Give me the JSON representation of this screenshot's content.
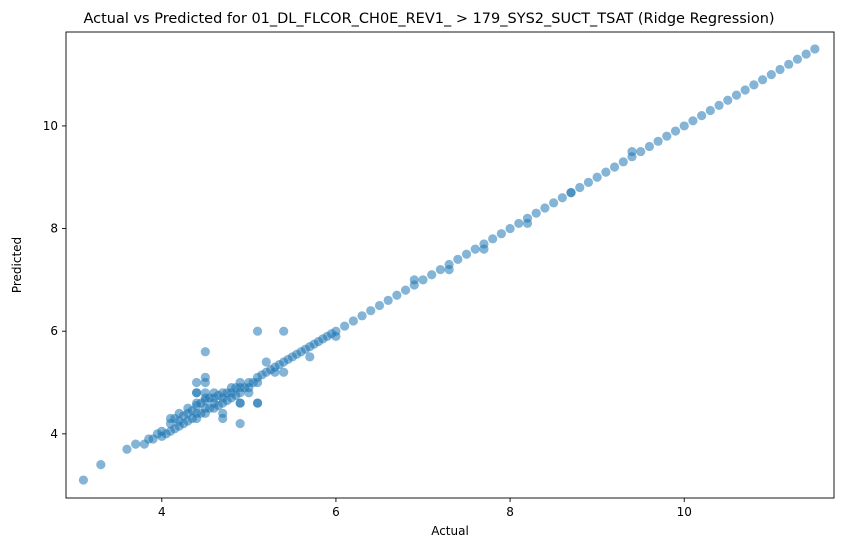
{
  "chart_data": {
    "type": "scatter",
    "title": "Actual vs Predicted for 01_DL_FLCOR_CH0E_REV1_ > 179_SYS2_SUCT_TSAT (Ridge Regression)",
    "xlabel": "Actual",
    "ylabel": "Predicted",
    "xlim": [
      2.9,
      11.72
    ],
    "ylim": [
      2.75,
      11.83
    ],
    "xticks": [
      4,
      6,
      8,
      10
    ],
    "yticks": [
      4,
      6,
      8,
      10
    ],
    "grid": false,
    "legend": "none",
    "colors": {
      "points": "#1f77b4",
      "axes": "#000000"
    },
    "point_alpha": 0.55,
    "series": [
      {
        "x": [
          3.1,
          3.3,
          3.6,
          3.7,
          3.8,
          3.85,
          3.9,
          3.95,
          4.0,
          4.0,
          4.05,
          4.1,
          4.1,
          4.1,
          4.15,
          4.15,
          4.2,
          4.2,
          4.2,
          4.25,
          4.25,
          4.3,
          4.3,
          4.3,
          4.35,
          4.35,
          4.4,
          4.4,
          4.4,
          4.4,
          4.4,
          4.45,
          4.45,
          4.5,
          4.5,
          4.5,
          4.5,
          4.5,
          4.5,
          4.55,
          4.55,
          4.6,
          4.6,
          4.6,
          4.6,
          4.65,
          4.65,
          4.7,
          4.7,
          4.7,
          4.7,
          4.75,
          4.75,
          4.8,
          4.8,
          4.8,
          4.85,
          4.85,
          4.9,
          4.9,
          4.9,
          4.9,
          4.95,
          5.0,
          5.0,
          5.0,
          5.05,
          5.1,
          5.1,
          5.1,
          5.15,
          5.2,
          5.2,
          5.25,
          5.3,
          5.35,
          5.4,
          5.4,
          5.45,
          5.5,
          5.55,
          5.6,
          5.65,
          5.7,
          5.75,
          5.8,
          5.85,
          5.9,
          5.95,
          6.0,
          6.1,
          6.2,
          6.3,
          6.4,
          6.5,
          6.6,
          6.7,
          6.8,
          6.9,
          7.0,
          7.1,
          7.2,
          7.3,
          7.4,
          7.5,
          7.6,
          7.7,
          7.8,
          7.9,
          8.0,
          8.1,
          8.2,
          8.3,
          8.4,
          8.5,
          8.6,
          8.7,
          8.8,
          8.9,
          9.0,
          9.1,
          9.2,
          9.3,
          9.4,
          9.5,
          9.6,
          9.7,
          9.8,
          9.9,
          10.0,
          10.1,
          10.2,
          10.3,
          10.4,
          10.5,
          10.6,
          10.7,
          10.8,
          10.9,
          11.0,
          11.1,
          11.2,
          11.3,
          11.4,
          11.5,
          4.4,
          4.5,
          4.9,
          4.4,
          4.5,
          5.1,
          5.4,
          4.7,
          5.1,
          4.9,
          5.3,
          5.7,
          6.9,
          7.3,
          7.7,
          8.2,
          8.7,
          9.4,
          6.0
        ],
        "y": [
          3.1,
          3.4,
          3.7,
          3.8,
          3.8,
          3.9,
          3.9,
          4.0,
          3.95,
          4.05,
          4.0,
          4.05,
          4.2,
          4.3,
          4.1,
          4.3,
          4.15,
          4.25,
          4.4,
          4.2,
          4.35,
          4.25,
          4.4,
          4.5,
          4.3,
          4.45,
          4.3,
          4.4,
          4.55,
          4.6,
          4.8,
          4.4,
          4.6,
          4.4,
          4.5,
          4.65,
          4.7,
          4.8,
          5.0,
          4.5,
          4.7,
          4.5,
          4.6,
          4.7,
          4.8,
          4.55,
          4.75,
          4.6,
          4.7,
          4.8,
          4.4,
          4.65,
          4.8,
          4.7,
          4.8,
          4.9,
          4.75,
          4.9,
          4.8,
          4.9,
          5.0,
          4.6,
          4.9,
          4.9,
          5.0,
          4.8,
          5.0,
          5.0,
          5.1,
          4.6,
          5.15,
          5.2,
          5.4,
          5.25,
          5.3,
          5.35,
          5.4,
          5.2,
          5.45,
          5.5,
          5.55,
          5.6,
          5.65,
          5.7,
          5.75,
          5.8,
          5.85,
          5.9,
          5.95,
          6.0,
          6.1,
          6.2,
          6.3,
          6.4,
          6.5,
          6.6,
          6.7,
          6.8,
          6.9,
          7.0,
          7.1,
          7.2,
          7.3,
          7.4,
          7.5,
          7.6,
          7.7,
          7.8,
          7.9,
          8.0,
          8.1,
          8.2,
          8.3,
          8.4,
          8.5,
          8.6,
          8.7,
          8.8,
          8.9,
          9.0,
          9.1,
          9.2,
          9.3,
          9.4,
          9.5,
          9.6,
          9.7,
          9.8,
          9.9,
          10.0,
          10.1,
          10.2,
          10.3,
          10.4,
          10.5,
          10.6,
          10.7,
          10.8,
          10.9,
          11.0,
          11.1,
          11.2,
          11.3,
          11.4,
          11.5,
          5.0,
          5.6,
          4.2,
          4.8,
          5.1,
          6.0,
          6.0,
          4.3,
          4.6,
          4.6,
          5.2,
          5.5,
          7.0,
          7.2,
          7.6,
          8.1,
          8.7,
          9.5,
          5.9
        ]
      }
    ]
  }
}
